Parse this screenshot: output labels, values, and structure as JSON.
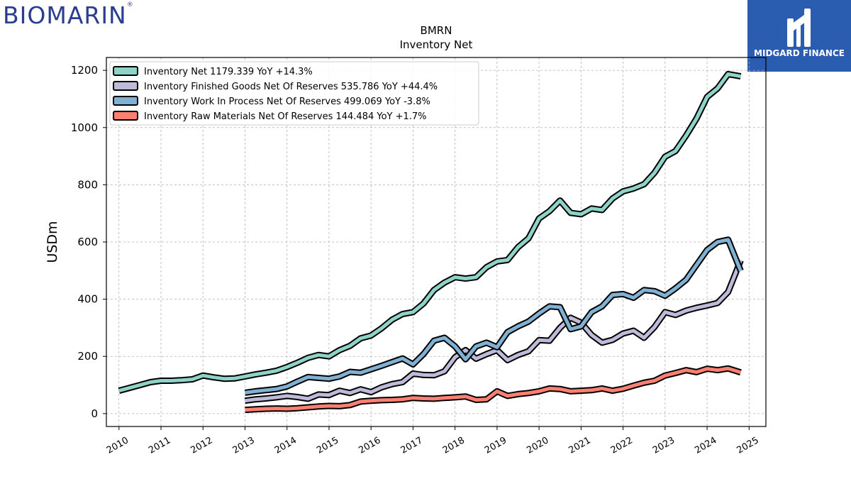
{
  "branding": {
    "left_logo_text": "BIOMARIN",
    "left_logo_mark": "®",
    "right_logo_text": "MIDGARD FINANCE",
    "right_logo_color": "#2a5db0"
  },
  "chart_data": {
    "type": "line",
    "title": "BMRN",
    "subtitle": "Inventory Net",
    "ylabel": "USDm",
    "xlabel": "",
    "xlim": [
      2009.7,
      2025.4
    ],
    "ylim": [
      -45,
      1245
    ],
    "x_ticks": [
      2010,
      2011,
      2012,
      2013,
      2014,
      2015,
      2016,
      2017,
      2018,
      2019,
      2020,
      2021,
      2022,
      2023,
      2024,
      2025
    ],
    "y_ticks": [
      0,
      200,
      400,
      600,
      800,
      1000,
      1200
    ],
    "grid": true,
    "legend_position": "top-left",
    "series": [
      {
        "name": "Inventory Net",
        "legend_label": "Inventory Net  1179.339 YoY +14.3%",
        "color": "#8dd3c7",
        "points": [
          [
            2010.0,
            80
          ],
          [
            2010.25,
            90
          ],
          [
            2010.5,
            100
          ],
          [
            2010.75,
            110
          ],
          [
            2011.0,
            115
          ],
          [
            2011.25,
            115
          ],
          [
            2011.5,
            117
          ],
          [
            2011.75,
            120
          ],
          [
            2012.0,
            133
          ],
          [
            2012.25,
            127
          ],
          [
            2012.5,
            122
          ],
          [
            2012.75,
            123
          ],
          [
            2013.0,
            130
          ],
          [
            2013.25,
            137
          ],
          [
            2013.5,
            143
          ],
          [
            2013.75,
            150
          ],
          [
            2014.0,
            163
          ],
          [
            2014.25,
            178
          ],
          [
            2014.5,
            195
          ],
          [
            2014.75,
            205
          ],
          [
            2015.0,
            200
          ],
          [
            2015.25,
            222
          ],
          [
            2015.5,
            237
          ],
          [
            2015.75,
            263
          ],
          [
            2016.0,
            273
          ],
          [
            2016.25,
            298
          ],
          [
            2016.5,
            328
          ],
          [
            2016.75,
            348
          ],
          [
            2017.0,
            355
          ],
          [
            2017.25,
            385
          ],
          [
            2017.5,
            432
          ],
          [
            2017.75,
            458
          ],
          [
            2018.0,
            477
          ],
          [
            2018.25,
            472
          ],
          [
            2018.5,
            477
          ],
          [
            2018.75,
            512
          ],
          [
            2019.0,
            532
          ],
          [
            2019.25,
            537
          ],
          [
            2019.5,
            582
          ],
          [
            2019.75,
            613
          ],
          [
            2020.0,
            682
          ],
          [
            2020.25,
            708
          ],
          [
            2020.5,
            745
          ],
          [
            2020.75,
            702
          ],
          [
            2021.0,
            697
          ],
          [
            2021.25,
            717
          ],
          [
            2021.5,
            712
          ],
          [
            2021.75,
            752
          ],
          [
            2022.0,
            777
          ],
          [
            2022.25,
            787
          ],
          [
            2022.5,
            802
          ],
          [
            2022.75,
            842
          ],
          [
            2023.0,
            898
          ],
          [
            2023.25,
            918
          ],
          [
            2023.5,
            972
          ],
          [
            2023.75,
            1032
          ],
          [
            2024.0,
            1107
          ],
          [
            2024.25,
            1137
          ],
          [
            2024.5,
            1187
          ],
          [
            2024.8,
            1179
          ]
        ]
      },
      {
        "name": "Inventory Finished Goods Net Of Reserves",
        "legend_label": "Inventory Finished Goods Net Of Reserves  535.786 YoY +44.4%",
        "color": "#bebada",
        "points": [
          [
            2013.0,
            45
          ],
          [
            2013.25,
            50
          ],
          [
            2013.5,
            53
          ],
          [
            2013.75,
            57
          ],
          [
            2014.0,
            62
          ],
          [
            2014.25,
            58
          ],
          [
            2014.5,
            52
          ],
          [
            2014.75,
            67
          ],
          [
            2015.0,
            65
          ],
          [
            2015.25,
            80
          ],
          [
            2015.5,
            72
          ],
          [
            2015.75,
            85
          ],
          [
            2016.0,
            75
          ],
          [
            2016.25,
            92
          ],
          [
            2016.5,
            103
          ],
          [
            2016.75,
            110
          ],
          [
            2017.0,
            140
          ],
          [
            2017.25,
            135
          ],
          [
            2017.5,
            134
          ],
          [
            2017.75,
            148
          ],
          [
            2018.0,
            197
          ],
          [
            2018.25,
            222
          ],
          [
            2018.5,
            192
          ],
          [
            2018.75,
            208
          ],
          [
            2019.0,
            222
          ],
          [
            2019.25,
            187
          ],
          [
            2019.5,
            205
          ],
          [
            2019.75,
            218
          ],
          [
            2020.0,
            257
          ],
          [
            2020.25,
            255
          ],
          [
            2020.5,
            300
          ],
          [
            2020.75,
            335
          ],
          [
            2021.0,
            318
          ],
          [
            2021.25,
            275
          ],
          [
            2021.5,
            248
          ],
          [
            2021.75,
            258
          ],
          [
            2022.0,
            280
          ],
          [
            2022.25,
            290
          ],
          [
            2022.5,
            265
          ],
          [
            2022.75,
            303
          ],
          [
            2023.0,
            355
          ],
          [
            2023.25,
            345
          ],
          [
            2023.5,
            360
          ],
          [
            2023.75,
            370
          ],
          [
            2024.0,
            378
          ],
          [
            2024.25,
            387
          ],
          [
            2024.5,
            425
          ],
          [
            2024.8,
            536
          ]
        ]
      },
      {
        "name": "Inventory Work In Process Net Of Reserves",
        "legend_label": "Inventory Work In Process Net Of Reserves  499.069 YoY -3.8%",
        "color": "#80b1d3",
        "points": [
          [
            2013.0,
            73
          ],
          [
            2013.25,
            78
          ],
          [
            2013.5,
            82
          ],
          [
            2013.75,
            86
          ],
          [
            2014.0,
            95
          ],
          [
            2014.25,
            112
          ],
          [
            2014.5,
            128
          ],
          [
            2014.75,
            125
          ],
          [
            2015.0,
            122
          ],
          [
            2015.25,
            130
          ],
          [
            2015.5,
            146
          ],
          [
            2015.75,
            143
          ],
          [
            2016.0,
            155
          ],
          [
            2016.25,
            167
          ],
          [
            2016.5,
            180
          ],
          [
            2016.75,
            193
          ],
          [
            2017.0,
            172
          ],
          [
            2017.25,
            208
          ],
          [
            2017.5,
            255
          ],
          [
            2017.75,
            265
          ],
          [
            2018.0,
            235
          ],
          [
            2018.25,
            190
          ],
          [
            2018.5,
            235
          ],
          [
            2018.75,
            248
          ],
          [
            2019.0,
            232
          ],
          [
            2019.25,
            285
          ],
          [
            2019.5,
            305
          ],
          [
            2019.75,
            322
          ],
          [
            2020.0,
            350
          ],
          [
            2020.25,
            375
          ],
          [
            2020.5,
            372
          ],
          [
            2020.75,
            295
          ],
          [
            2021.0,
            305
          ],
          [
            2021.25,
            355
          ],
          [
            2021.5,
            375
          ],
          [
            2021.75,
            415
          ],
          [
            2022.0,
            418
          ],
          [
            2022.25,
            405
          ],
          [
            2022.5,
            432
          ],
          [
            2022.75,
            428
          ],
          [
            2023.0,
            412
          ],
          [
            2023.25,
            438
          ],
          [
            2023.5,
            468
          ],
          [
            2023.75,
            520
          ],
          [
            2024.0,
            572
          ],
          [
            2024.25,
            600
          ],
          [
            2024.5,
            608
          ],
          [
            2024.8,
            499
          ]
        ]
      },
      {
        "name": "Inventory Raw Materials Net Of Reserves",
        "legend_label": "Inventory Raw Materials Net Of Reserves  144.484 YoY +1.7%",
        "color": "#fb8072",
        "points": [
          [
            2013.0,
            13
          ],
          [
            2013.25,
            15
          ],
          [
            2013.5,
            17
          ],
          [
            2013.75,
            18
          ],
          [
            2014.0,
            17
          ],
          [
            2014.25,
            19
          ],
          [
            2014.5,
            22
          ],
          [
            2014.75,
            25
          ],
          [
            2015.0,
            27
          ],
          [
            2015.25,
            26
          ],
          [
            2015.5,
            30
          ],
          [
            2015.75,
            42
          ],
          [
            2016.0,
            45
          ],
          [
            2016.25,
            47
          ],
          [
            2016.5,
            48
          ],
          [
            2016.75,
            50
          ],
          [
            2017.0,
            55
          ],
          [
            2017.25,
            53
          ],
          [
            2017.5,
            52
          ],
          [
            2017.75,
            55
          ],
          [
            2018.0,
            57
          ],
          [
            2018.25,
            60
          ],
          [
            2018.5,
            48
          ],
          [
            2018.75,
            50
          ],
          [
            2019.0,
            78
          ],
          [
            2019.25,
            62
          ],
          [
            2019.5,
            68
          ],
          [
            2019.75,
            72
          ],
          [
            2020.0,
            78
          ],
          [
            2020.25,
            88
          ],
          [
            2020.5,
            86
          ],
          [
            2020.75,
            78
          ],
          [
            2021.0,
            80
          ],
          [
            2021.25,
            82
          ],
          [
            2021.5,
            88
          ],
          [
            2021.75,
            80
          ],
          [
            2022.0,
            87
          ],
          [
            2022.25,
            98
          ],
          [
            2022.5,
            108
          ],
          [
            2022.75,
            115
          ],
          [
            2023.0,
            133
          ],
          [
            2023.25,
            142
          ],
          [
            2023.5,
            152
          ],
          [
            2023.75,
            145
          ],
          [
            2024.0,
            157
          ],
          [
            2024.25,
            152
          ],
          [
            2024.5,
            158
          ],
          [
            2024.8,
            144
          ]
        ]
      }
    ]
  }
}
